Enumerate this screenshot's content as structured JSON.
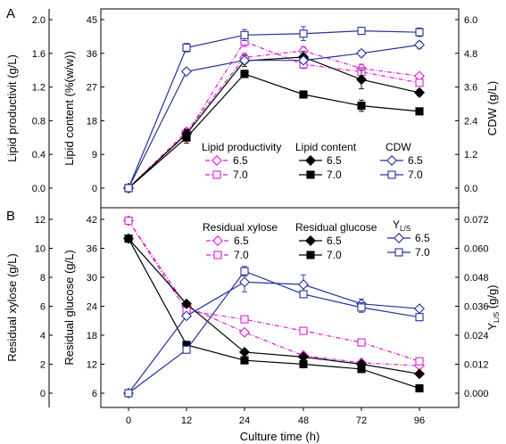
{
  "colors": {
    "magenta": "#dd1fd3",
    "black": "#000000",
    "blue": "#27309b"
  },
  "chart_data": [
    {
      "panel": "A",
      "type": "line",
      "categories": [
        "0",
        "12",
        "24",
        "48",
        "72",
        "96"
      ],
      "xlabel": "Culture time (h)",
      "axes": {
        "left_outer": {
          "label": "Lipid productivit (g/L)",
          "lim": [
            0,
            2.0
          ],
          "ticks": [
            "0.0",
            "0.4",
            "0.8",
            "1.2",
            "1.6",
            "2.0"
          ]
        },
        "left_inner": {
          "label": "Lipid content (%(w/w))",
          "lim": [
            0,
            45
          ],
          "ticks": [
            "0",
            "9",
            "18",
            "27",
            "36",
            "45"
          ]
        },
        "right": {
          "label": "CDW (g/L)",
          "lim": [
            0,
            6.0
          ],
          "ticks": [
            "0.0",
            "1.2",
            "2.4",
            "3.6",
            "4.8",
            "6.0"
          ]
        }
      },
      "legend_groups": [
        {
          "title": "Lipid productivity",
          "entries": [
            "6.5",
            "7.0"
          ]
        },
        {
          "title": "Lipid content",
          "entries": [
            "6.5",
            "7.0"
          ]
        },
        {
          "title": "CDW",
          "entries": [
            "6.5",
            "7.0"
          ]
        }
      ],
      "series": [
        {
          "group": "Lipid productivity",
          "name": "6.5",
          "axis": "left_outer",
          "color": "magenta",
          "marker": "diamond-open",
          "dash": "dashdot",
          "values": [
            0.0,
            0.67,
            1.55,
            1.63,
            1.42,
            1.33
          ],
          "errors": [
            0,
            0.04,
            0.05,
            0.05,
            0.05,
            0.03
          ]
        },
        {
          "group": "Lipid productivity",
          "name": "7.0",
          "axis": "left_outer",
          "color": "magenta",
          "marker": "square-open",
          "dash": "dashdot",
          "values": [
            0.0,
            0.64,
            1.74,
            1.47,
            1.38,
            1.25
          ],
          "errors": [
            0,
            0.05,
            0.06,
            0.05,
            0.05,
            0.04
          ]
        },
        {
          "group": "Lipid content",
          "name": "6.5",
          "axis": "left_inner",
          "color": "black",
          "marker": "diamond-filled",
          "dash": "solid",
          "values": [
            0,
            14.5,
            34,
            35,
            29,
            25.5
          ],
          "errors": [
            0,
            1.2,
            1.5,
            1.5,
            2.5,
            0.8
          ]
        },
        {
          "group": "Lipid content",
          "name": "7.0",
          "axis": "left_inner",
          "color": "black",
          "marker": "square-filled",
          "dash": "solid",
          "values": [
            0,
            13.5,
            30.5,
            25,
            22,
            20.5
          ],
          "errors": [
            0,
            1.5,
            1.0,
            0.6,
            1.5,
            0.6
          ]
        },
        {
          "group": "CDW",
          "name": "6.5",
          "axis": "right",
          "color": "blue",
          "marker": "diamond-open",
          "dash": "solid",
          "values": [
            0,
            4.15,
            4.55,
            4.55,
            4.8,
            5.1
          ],
          "errors": [
            0,
            0.08,
            0.1,
            0.1,
            0.1,
            0.12
          ]
        },
        {
          "group": "CDW",
          "name": "7.0",
          "axis": "right",
          "color": "blue",
          "marker": "square-open",
          "dash": "solid",
          "values": [
            0,
            5.0,
            5.45,
            5.5,
            5.6,
            5.55
          ],
          "errors": [
            0,
            0.15,
            0.2,
            0.25,
            0.05,
            0.15
          ]
        }
      ]
    },
    {
      "panel": "B",
      "type": "line",
      "categories": [
        "0",
        "12",
        "24",
        "48",
        "72",
        "96"
      ],
      "xlabel": "Culture time (h)",
      "axes": {
        "left_outer": {
          "label": "Residual xylose (g/L)",
          "lim": [
            0,
            12
          ],
          "ticks": [
            "0",
            "2",
            "4",
            "6",
            "8",
            "10",
            "12"
          ]
        },
        "left_inner": {
          "label": "Residual glucose (g/L)",
          "lim": [
            6,
            42
          ],
          "ticks": [
            "6",
            "12",
            "18",
            "24",
            "30",
            "36",
            "42"
          ]
        },
        "right": {
          "label": "Y",
          "label_sub": "L/S",
          "label_unit": " (g/g)",
          "lim": [
            0,
            0.072
          ],
          "ticks": [
            "0.000",
            "0.012",
            "0.024",
            "0.036",
            "0.048",
            "0.060",
            "0.072"
          ]
        }
      },
      "legend_groups": [
        {
          "title": "Residual xylose",
          "entries": [
            "6.5",
            "7.0"
          ]
        },
        {
          "title": "Residual glucose",
          "entries": [
            "6.5",
            "7.0"
          ]
        },
        {
          "title": "Y",
          "title_sub": "L/S",
          "entries": [
            "6.5",
            "7.0"
          ]
        }
      ],
      "series": [
        {
          "group": "Residual xylose",
          "name": "6.5",
          "axis": "left_outer",
          "color": "magenta",
          "marker": "diamond-open",
          "dash": "dashdot",
          "values": [
            11.9,
            6.0,
            4.2,
            2.6,
            2.1,
            1.9
          ],
          "errors": [
            0.1,
            0.1,
            0.1,
            0.1,
            0.1,
            0.1
          ]
        },
        {
          "group": "Residual xylose",
          "name": "7.0",
          "axis": "left_outer",
          "color": "magenta",
          "marker": "square-open",
          "dash": "dashdot",
          "values": [
            11.9,
            5.7,
            5.1,
            4.3,
            3.5,
            2.2
          ],
          "errors": [
            0.1,
            0.1,
            0.1,
            0.1,
            0.1,
            0.1
          ]
        },
        {
          "group": "Residual glucose",
          "name": "6.5",
          "axis": "left_inner",
          "color": "black",
          "marker": "diamond-filled",
          "dash": "solid",
          "values": [
            38,
            24.5,
            14.5,
            13.5,
            12,
            10
          ],
          "errors": [
            0.3,
            0.5,
            0.5,
            0.5,
            0.5,
            0.3
          ]
        },
        {
          "group": "Residual glucose",
          "name": "7.0",
          "axis": "left_inner",
          "color": "black",
          "marker": "square-filled",
          "dash": "solid",
          "values": [
            38,
            16,
            12.8,
            12,
            11,
            7
          ],
          "errors": [
            0.3,
            0.4,
            0.4,
            0.4,
            0.4,
            0.3
          ]
        },
        {
          "group": "Y_L/S",
          "name": "6.5",
          "axis": "right",
          "color": "blue",
          "marker": "diamond-open",
          "dash": "solid",
          "values": [
            0.0,
            0.032,
            0.046,
            0.045,
            0.037,
            0.035
          ],
          "errors": [
            0,
            0.001,
            0.004,
            0.004,
            0.002,
            0.001
          ]
        },
        {
          "group": "Y_L/S",
          "name": "7.0",
          "axis": "right",
          "color": "blue",
          "marker": "square-open",
          "dash": "solid",
          "values": [
            0.0,
            0.018,
            0.0505,
            0.041,
            0.0355,
            0.0315
          ],
          "errors": [
            0,
            0.001,
            0.002,
            0.001,
            0.002,
            0.001
          ]
        }
      ]
    }
  ]
}
